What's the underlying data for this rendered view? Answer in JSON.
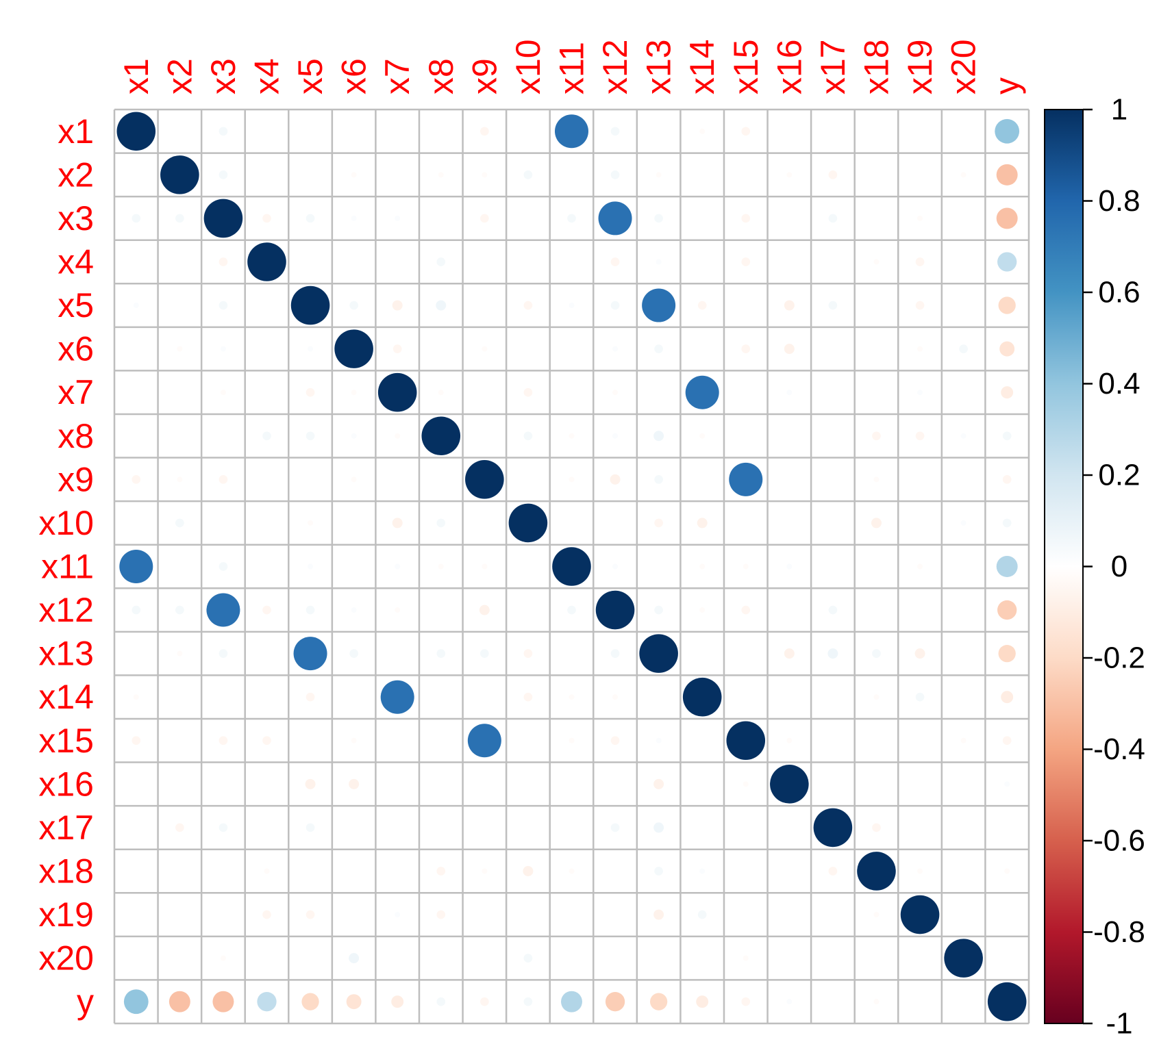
{
  "chart_data": {
    "type": "heatmap",
    "style": "correlation-circles",
    "title": "",
    "xlabel": "",
    "ylabel": "",
    "variables": [
      "x1",
      "x2",
      "x3",
      "x4",
      "x5",
      "x6",
      "x7",
      "x8",
      "x9",
      "x10",
      "x11",
      "x12",
      "x13",
      "x14",
      "x15",
      "x16",
      "x17",
      "x18",
      "x19",
      "x20",
      "y"
    ],
    "matrix": [
      [
        1,
        0,
        0.05,
        0,
        0,
        0,
        0,
        0,
        -0.05,
        0,
        0.75,
        0.05,
        0,
        -0.02,
        -0.05,
        0,
        0,
        0,
        0,
        0,
        0.4
      ],
      [
        0,
        1,
        0.05,
        0,
        0,
        -0.02,
        0,
        -0.02,
        -0.02,
        0.05,
        0,
        0.05,
        -0.02,
        0,
        0,
        -0.02,
        -0.05,
        0,
        0,
        -0.02,
        -0.3
      ],
      [
        0.05,
        0.05,
        1,
        -0.05,
        0.05,
        0.02,
        0.02,
        0,
        -0.05,
        0,
        0.05,
        0.75,
        0.05,
        0,
        -0.05,
        0,
        0.05,
        0,
        -0.02,
        0,
        -0.3
      ],
      [
        0,
        0,
        -0.05,
        1,
        0,
        0,
        0,
        0.05,
        0,
        0,
        0,
        -0.05,
        0.02,
        0,
        -0.05,
        0,
        0,
        -0.02,
        -0.05,
        0,
        0.25
      ],
      [
        0.02,
        0,
        0.05,
        0,
        1,
        0.05,
        -0.07,
        0.07,
        0,
        -0.05,
        0.02,
        0.05,
        0.75,
        -0.05,
        0,
        -0.07,
        0.05,
        0,
        -0.05,
        0,
        -0.2
      ],
      [
        0,
        -0.02,
        0.02,
        0,
        0.02,
        1,
        -0.05,
        0,
        -0.02,
        0,
        0,
        0.02,
        0.05,
        0,
        -0.05,
        -0.07,
        0,
        0,
        -0.02,
        0.05,
        -0.15
      ],
      [
        0,
        0,
        -0.02,
        0,
        -0.05,
        -0.02,
        1,
        -0.02,
        0,
        -0.05,
        0,
        -0.02,
        0,
        0.75,
        0,
        0.02,
        0,
        0,
        0.02,
        0,
        -0.1
      ],
      [
        0,
        0,
        0,
        0.05,
        0.05,
        0.02,
        -0.02,
        1,
        0,
        0.05,
        -0.02,
        0.02,
        0.07,
        -0.02,
        0,
        0,
        0,
        -0.05,
        -0.05,
        0.02,
        0.05
      ],
      [
        -0.05,
        -0.02,
        -0.05,
        0,
        0,
        -0.02,
        0,
        0,
        1,
        0,
        -0.02,
        -0.07,
        0.05,
        0,
        0.75,
        0,
        0,
        -0.02,
        0,
        0,
        -0.05
      ],
      [
        0,
        0.05,
        0,
        0,
        -0.02,
        0,
        -0.07,
        0.05,
        0,
        1,
        0,
        0,
        -0.05,
        -0.07,
        0,
        0,
        0,
        -0.07,
        0,
        0.02,
        0.05
      ],
      [
        0.75,
        0,
        0.05,
        0,
        0.02,
        0,
        0.02,
        -0.02,
        -0.02,
        0,
        1,
        0.02,
        0,
        -0.02,
        -0.02,
        0.02,
        0,
        0,
        -0.02,
        0,
        0.3
      ],
      [
        0.05,
        0.05,
        0.75,
        -0.05,
        0.05,
        0.02,
        -0.02,
        0,
        -0.07,
        0,
        0.05,
        1,
        0.05,
        -0.02,
        -0.05,
        0,
        0.05,
        0,
        0,
        0,
        -0.25
      ],
      [
        0,
        -0.02,
        0.05,
        0,
        0.75,
        0.05,
        0,
        0.05,
        0.05,
        -0.05,
        0,
        0.05,
        1,
        0,
        0,
        -0.07,
        0.07,
        0.05,
        -0.07,
        0,
        -0.2
      ],
      [
        -0.02,
        0,
        0,
        0,
        -0.05,
        0,
        0.75,
        0,
        0,
        -0.05,
        -0.02,
        -0.02,
        0,
        1,
        0,
        0,
        0,
        -0.02,
        0.05,
        0,
        -0.1
      ],
      [
        -0.05,
        0,
        -0.05,
        -0.05,
        0,
        -0.02,
        0,
        0,
        0.75,
        0,
        -0.02,
        -0.05,
        0.02,
        0,
        1,
        -0.02,
        0,
        0,
        0,
        -0.02,
        -0.05
      ],
      [
        0,
        0,
        0,
        0,
        -0.07,
        -0.07,
        0,
        0,
        0,
        0,
        0,
        0,
        -0.07,
        0,
        -0.02,
        1,
        0,
        0,
        0,
        0,
        0.02
      ],
      [
        0,
        -0.05,
        0.05,
        0,
        0.05,
        0,
        0,
        0,
        0,
        0,
        0,
        0.05,
        0.07,
        0,
        0,
        0,
        1,
        -0.05,
        0,
        0,
        0
      ],
      [
        0,
        0,
        0,
        -0.02,
        0,
        0,
        0,
        -0.05,
        -0.02,
        -0.07,
        -0.02,
        0,
        0.05,
        0.02,
        0,
        0,
        -0.05,
        1,
        -0.02,
        0,
        -0.02
      ],
      [
        0,
        0,
        0,
        -0.05,
        -0.05,
        0,
        0.02,
        -0.05,
        0,
        0,
        0,
        0,
        -0.07,
        0.05,
        0,
        0,
        0,
        -0.02,
        1,
        0,
        0
      ],
      [
        0,
        0,
        -0.02,
        0,
        0,
        0.07,
        0,
        0,
        0,
        0.05,
        0,
        0,
        0,
        0,
        -0.02,
        0,
        0,
        0,
        0,
        1,
        0
      ],
      [
        0.4,
        -0.3,
        -0.3,
        0.25,
        -0.2,
        -0.15,
        -0.1,
        0.05,
        -0.05,
        0.05,
        0.3,
        -0.25,
        -0.2,
        -0.1,
        -0.05,
        0.02,
        0,
        -0.02,
        0,
        0,
        1
      ]
    ],
    "color_scale": {
      "range": [
        -1,
        1
      ],
      "stops": [
        {
          "value": -1,
          "color": "#67001F"
        },
        {
          "value": -0.8,
          "color": "#B2182B"
        },
        {
          "value": -0.6,
          "color": "#D6604D"
        },
        {
          "value": -0.4,
          "color": "#F4A582"
        },
        {
          "value": -0.2,
          "color": "#FDDBC7"
        },
        {
          "value": 0,
          "color": "#FFFFFF"
        },
        {
          "value": 0.2,
          "color": "#D1E5F0"
        },
        {
          "value": 0.4,
          "color": "#92C5DE"
        },
        {
          "value": 0.6,
          "color": "#4393C3"
        },
        {
          "value": 0.8,
          "color": "#2166AC"
        },
        {
          "value": 1,
          "color": "#053061"
        }
      ],
      "ticks": [
        1,
        0.8,
        0.6,
        0.4,
        0.2,
        0,
        -0.2,
        -0.4,
        -0.6,
        -0.8,
        -1
      ],
      "tick_labels": [
        "1",
        "0.8",
        "0.6",
        "0.4",
        "0.2",
        "0",
        "-0.2",
        "-0.4",
        "-0.6",
        "-0.8",
        "-1"
      ]
    },
    "label_color": "#FF0000",
    "grid_color": "#BEBEBE",
    "grid": true,
    "legend_placement": "right"
  }
}
